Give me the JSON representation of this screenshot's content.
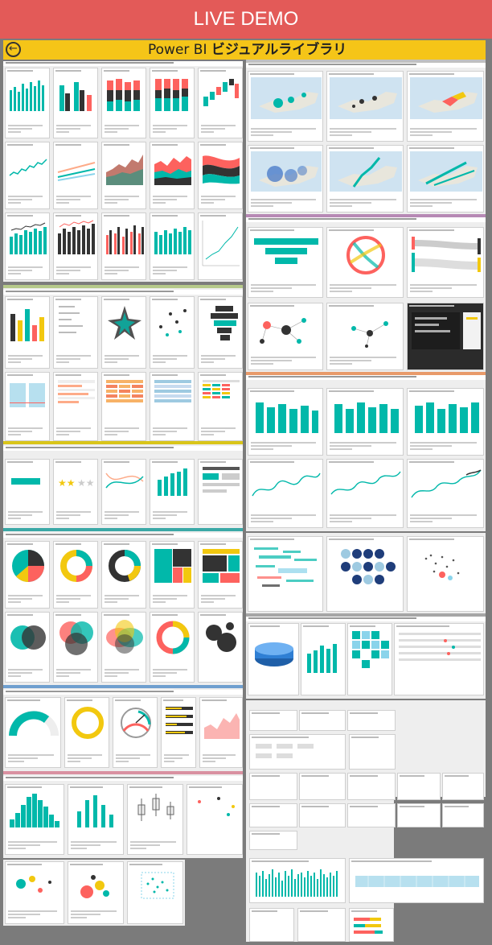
{
  "banner": {
    "label": "LIVE DEMO"
  },
  "header": {
    "title_prefix": "Power BI ",
    "title_main": "ビジュアルライブラリ"
  },
  "sections": {
    "chart_label": "棒グラフ",
    "map_label": "地図"
  }
}
